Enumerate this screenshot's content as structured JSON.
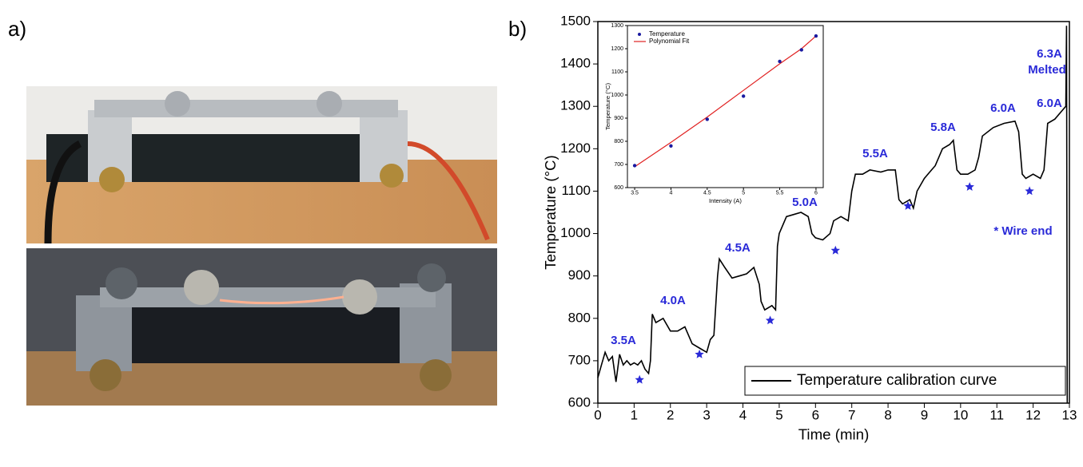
{
  "panel_labels": [
    "a)",
    "b)"
  ],
  "chart_data": [
    {
      "type": "line",
      "ylabel": "Temperature (°C)",
      "xlabel": "Time (min)",
      "xlim": [
        0,
        13
      ],
      "ylim": [
        600,
        1500
      ],
      "xticks": [
        0,
        1,
        2,
        3,
        4,
        5,
        6,
        7,
        8,
        9,
        10,
        11,
        12,
        13
      ],
      "yticks": [
        600,
        700,
        800,
        900,
        1000,
        1100,
        1200,
        1300,
        1400,
        1500
      ],
      "legend": "lower right",
      "series": [
        {
          "name": "Temperature calibration curve",
          "color": "#000000",
          "x": [
            0,
            0.1,
            0.2,
            0.3,
            0.4,
            0.5,
            0.6,
            0.7,
            0.8,
            0.9,
            1.0,
            1.1,
            1.2,
            1.3,
            1.4,
            1.45,
            1.5,
            1.6,
            1.8,
            2.0,
            2.2,
            2.4,
            2.6,
            2.8,
            3.0,
            3.1,
            3.2,
            3.3,
            3.35,
            3.5,
            3.7,
            3.9,
            4.1,
            4.3,
            4.45,
            4.5,
            4.6,
            4.8,
            4.9,
            4.95,
            5.0,
            5.2,
            5.4,
            5.6,
            5.8,
            5.9,
            6.0,
            6.2,
            6.4,
            6.5,
            6.7,
            6.9,
            7.0,
            7.1,
            7.3,
            7.5,
            7.8,
            8.0,
            8.2,
            8.3,
            8.4,
            8.6,
            8.7,
            8.8,
            9.0,
            9.2,
            9.3,
            9.5,
            9.7,
            9.8,
            9.9,
            10.0,
            10.2,
            10.4,
            10.5,
            10.6,
            10.9,
            11.2,
            11.5,
            11.6,
            11.7,
            11.8,
            12.0,
            12.2,
            12.3,
            12.4,
            12.6,
            12.8,
            12.9,
            12.92,
            12.94
          ],
          "values": [
            660,
            690,
            720,
            700,
            710,
            650,
            715,
            690,
            700,
            690,
            695,
            690,
            700,
            680,
            670,
            700,
            810,
            790,
            800,
            770,
            770,
            780,
            740,
            730,
            720,
            750,
            760,
            900,
            940,
            920,
            895,
            900,
            905,
            920,
            880,
            840,
            820,
            830,
            820,
            970,
            1000,
            1040,
            1045,
            1050,
            1040,
            1000,
            990,
            985,
            1000,
            1030,
            1040,
            1030,
            1100,
            1140,
            1140,
            1150,
            1145,
            1150,
            1150,
            1080,
            1070,
            1080,
            1060,
            1100,
            1130,
            1150,
            1160,
            1200,
            1210,
            1220,
            1150,
            1140,
            1140,
            1150,
            1180,
            1230,
            1250,
            1260,
            1265,
            1240,
            1140,
            1130,
            1140,
            1130,
            1150,
            1260,
            1270,
            1290,
            1300,
            1490,
            600
          ]
        },
        {
          "type": "scatter",
          "color": "#2a2ad8",
          "x": [
            1.15,
            2.8,
            4.75,
            6.55,
            8.55,
            10.25,
            11.9
          ],
          "values": [
            655,
            715,
            795,
            960,
            1065,
            1110,
            1100
          ]
        }
      ],
      "annotations": [
        "3.5A",
        "4.0A",
        "4.5A",
        "5.0A",
        "5.5A",
        "5.8A",
        "6.0A",
        "6.0A",
        "6.3A",
        "Melted",
        "* Wire end"
      ]
    },
    {
      "type": "scatter",
      "xlabel": "Intensity (A)",
      "ylabel": "Temperature (°C)",
      "xlim": [
        3.4,
        6.1
      ],
      "ylim": [
        600,
        1300
      ],
      "xticks": [
        3.5,
        4.0,
        4.5,
        5.0,
        5.5,
        6.0
      ],
      "yticks": [
        600,
        700,
        800,
        900,
        1000,
        1100,
        1200,
        1300
      ],
      "legend": "upper left",
      "series": [
        {
          "name": "Temperature",
          "color": "#1a1aa0",
          "x": [
            3.5,
            4.0,
            4.5,
            5.0,
            5.5,
            5.8,
            6.0
          ],
          "values": [
            695,
            780,
            895,
            995,
            1145,
            1195,
            1255
          ]
        },
        {
          "name": "Polynomial Fit",
          "color": "#e02020",
          "x": [
            3.5,
            4.0,
            4.5,
            5.0,
            5.5,
            5.8,
            6.0
          ],
          "values": [
            690,
            795,
            905,
            1020,
            1135,
            1200,
            1255
          ]
        }
      ]
    }
  ]
}
